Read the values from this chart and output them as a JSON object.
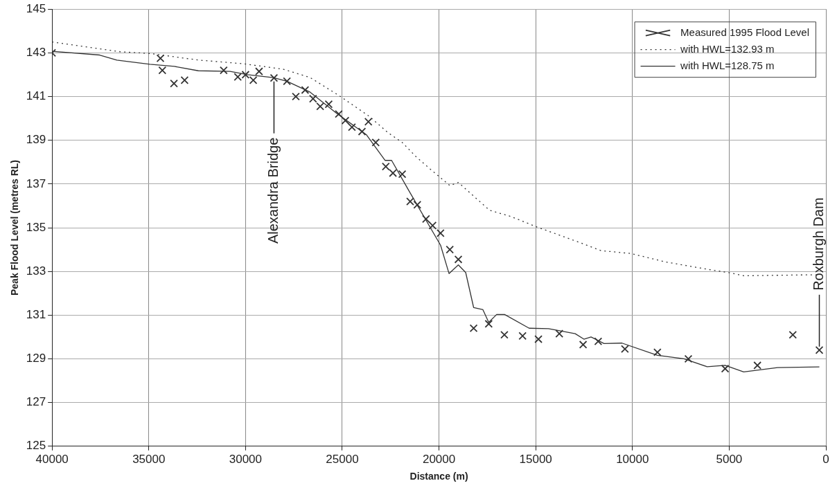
{
  "chart_data": {
    "type": "scatter",
    "xlabel": "Distance (m)",
    "ylabel": "Peak Flood Level (metres RL)",
    "xlim": [
      40000,
      0
    ],
    "xticks": [
      40000,
      35000,
      30000,
      25000,
      20000,
      15000,
      10000,
      5000,
      0
    ],
    "ylim": [
      125,
      145
    ],
    "yticks": [
      125,
      127,
      129,
      131,
      133,
      135,
      137,
      139,
      141,
      143,
      145
    ],
    "grid": true,
    "legend": "top right",
    "annotations": [
      {
        "text": "Alexandra Bridge",
        "x": 28530,
        "y": 141.85
      },
      {
        "text": "Roxburgh Dam",
        "x": 340,
        "y": 129.4
      }
    ],
    "series": [
      {
        "name": "Measured 1995 Flood Level",
        "marker": "cross",
        "color": "#333333",
        "x": [
          40000,
          34400,
          34300,
          33700,
          33150,
          31130,
          30400,
          30000,
          29600,
          29300,
          28530,
          27860,
          27400,
          26920,
          26510,
          26140,
          25700,
          25180,
          24840,
          24500,
          23980,
          23650,
          23270,
          22750,
          22380,
          21900,
          21490,
          21120,
          20670,
          20330,
          19920,
          19440,
          19000,
          18210,
          17430,
          16620,
          15680,
          14860,
          13780,
          12550,
          11770,
          10390,
          8710,
          7110,
          5210,
          3540,
          1710,
          340
        ],
        "values": [
          143.0,
          142.75,
          142.2,
          141.6,
          141.75,
          142.2,
          141.9,
          142.0,
          141.75,
          142.15,
          141.85,
          141.7,
          141.0,
          141.3,
          140.9,
          140.55,
          140.65,
          140.2,
          139.9,
          139.6,
          139.4,
          139.85,
          138.9,
          137.8,
          137.5,
          137.45,
          136.2,
          136.05,
          135.4,
          135.1,
          134.75,
          134.0,
          133.55,
          130.4,
          130.6,
          130.1,
          130.05,
          129.9,
          130.15,
          129.65,
          129.8,
          129.45,
          129.3,
          129.0,
          128.55,
          128.7,
          130.1,
          129.4
        ]
      },
      {
        "name": "with HWL=132.93 m",
        "type": "line",
        "marker": "none",
        "line_style": "dotted",
        "color": "#333333",
        "x": [
          40000,
          36460,
          34930,
          32440,
          30090,
          28040,
          26660,
          25140,
          23610,
          22640,
          21900,
          21190,
          20410,
          19440,
          19000,
          17390,
          16310,
          14930,
          12810,
          11620,
          10090,
          8270,
          6140,
          4920,
          4250,
          1190,
          340
        ],
        "values": [
          143.5,
          143.05,
          142.97,
          142.67,
          142.5,
          142.25,
          141.87,
          141.03,
          140.1,
          139.35,
          138.9,
          138.25,
          137.65,
          136.93,
          137.07,
          135.8,
          135.52,
          135.03,
          134.35,
          133.95,
          133.82,
          133.43,
          133.1,
          132.93,
          132.8,
          132.84,
          132.84
        ]
      },
      {
        "name": "with HWL=128.75 m",
        "type": "line",
        "marker": "none",
        "line_style": "solid",
        "color": "#333333",
        "x": [
          40000,
          37540,
          36650,
          34940,
          33680,
          32440,
          30800,
          29900,
          28570,
          27860,
          26660,
          25290,
          23760,
          22790,
          22450,
          21560,
          19920,
          19480,
          19000,
          18620,
          18210,
          17730,
          17430,
          17020,
          16610,
          15340,
          14340,
          12960,
          12510,
          12140,
          11470,
          10540,
          8710,
          7340,
          6140,
          5210,
          4250,
          2500,
          340
        ],
        "values": [
          143.07,
          142.9,
          142.67,
          142.48,
          142.38,
          142.18,
          142.15,
          142.0,
          141.87,
          141.7,
          141.2,
          140.23,
          139.26,
          138.08,
          138.08,
          136.7,
          134.2,
          132.9,
          133.3,
          132.95,
          131.35,
          131.25,
          130.67,
          131.03,
          131.03,
          130.4,
          130.38,
          130.15,
          129.9,
          130.0,
          129.7,
          129.72,
          129.16,
          129.0,
          128.64,
          128.7,
          128.4,
          128.6,
          128.63
        ]
      }
    ]
  }
}
